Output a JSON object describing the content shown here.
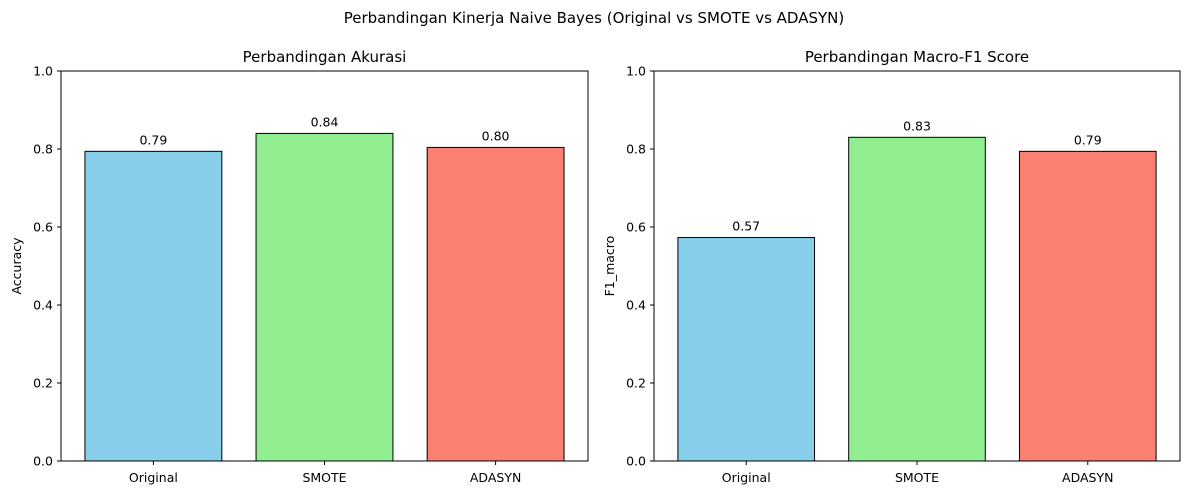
{
  "figure": {
    "suptitle": "Perbandingan Kinerja Naive Bayes (Original vs SMOTE vs ADASYN)"
  },
  "chart_data": [
    {
      "type": "bar",
      "title": "Perbandingan Akurasi",
      "xlabel": "",
      "ylabel": "Accuracy",
      "categories": [
        "Original",
        "SMOTE",
        "ADASYN"
      ],
      "values": [
        0.794,
        0.84,
        0.804
      ],
      "value_labels": [
        "0.79",
        "0.84",
        "0.80"
      ],
      "colors": [
        "#87CEEB",
        "#90EE90",
        "#FA8072"
      ],
      "edgecolor": "#000000",
      "ylim": [
        0,
        1.0
      ],
      "yticks": [
        "0.0",
        "0.2",
        "0.4",
        "0.6",
        "0.8",
        "1.0"
      ],
      "grid": false
    },
    {
      "type": "bar",
      "title": "Perbandingan Macro-F1 Score",
      "xlabel": "",
      "ylabel": "F1_macro",
      "categories": [
        "Original",
        "SMOTE",
        "ADASYN"
      ],
      "values": [
        0.573,
        0.83,
        0.794
      ],
      "value_labels": [
        "0.57",
        "0.83",
        "0.79"
      ],
      "colors": [
        "#87CEEB",
        "#90EE90",
        "#FA8072"
      ],
      "edgecolor": "#000000",
      "ylim": [
        0,
        1.0
      ],
      "yticks": [
        "0.0",
        "0.2",
        "0.4",
        "0.6",
        "0.8",
        "1.0"
      ],
      "grid": false
    }
  ]
}
